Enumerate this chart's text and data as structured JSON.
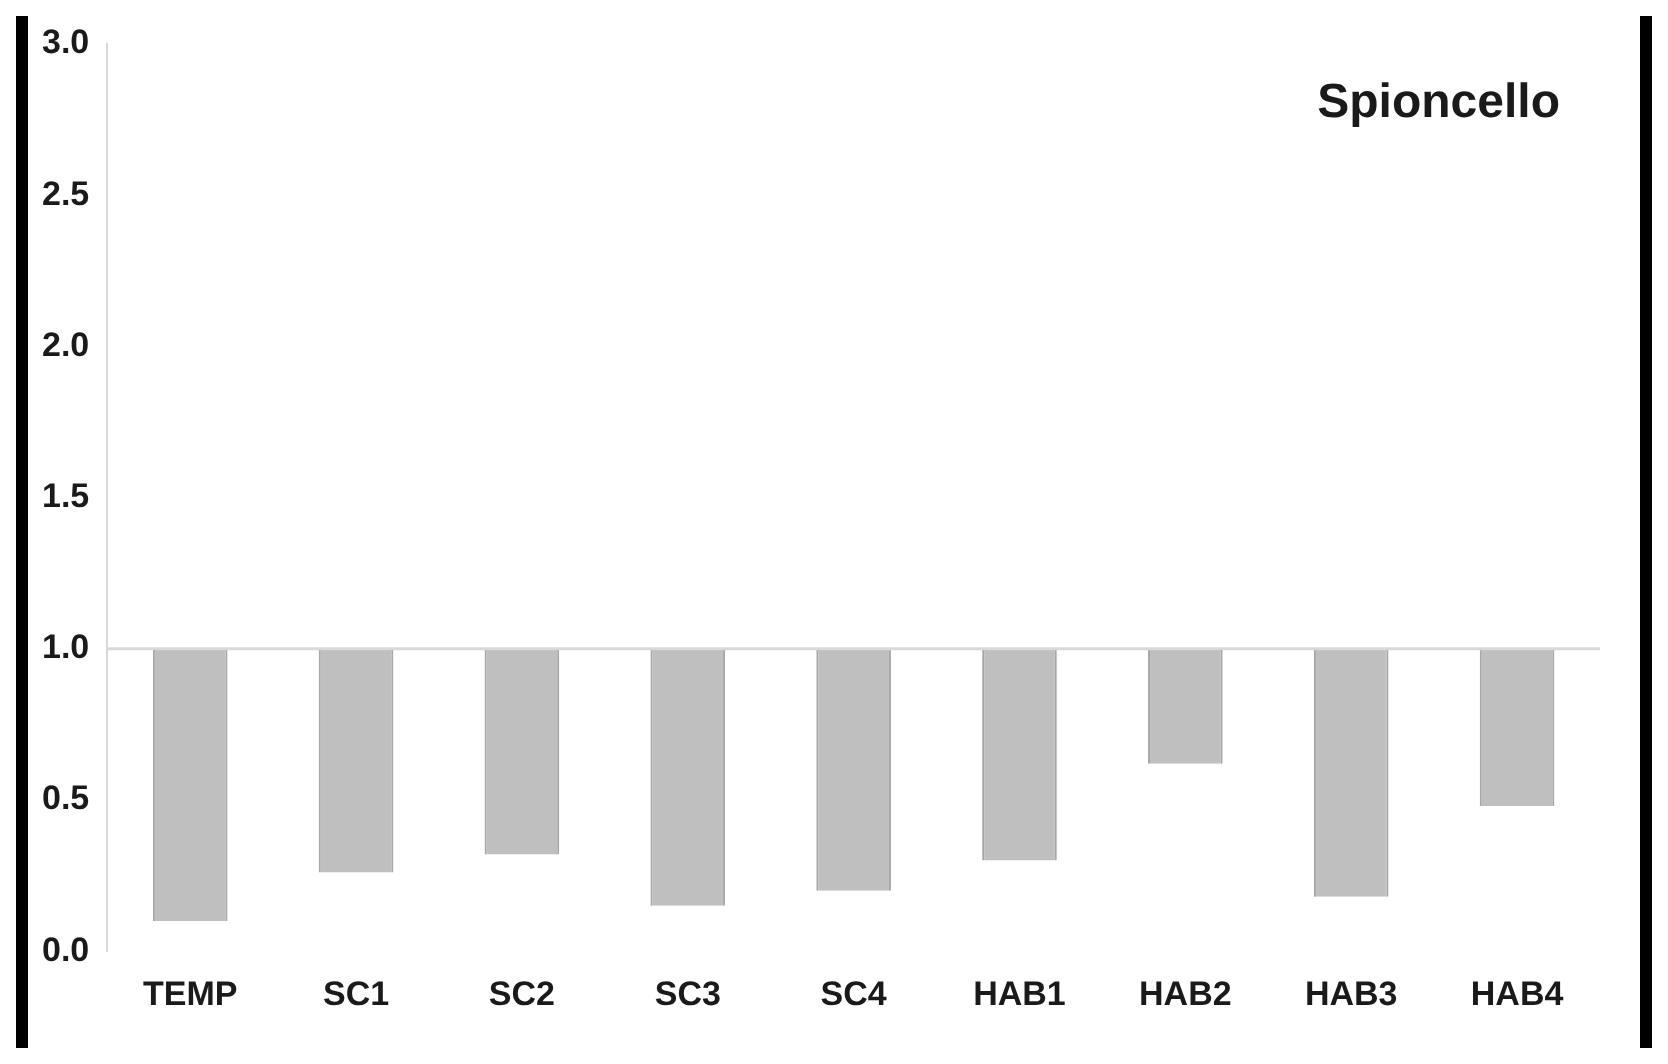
{
  "chart_data": {
    "type": "bar",
    "title": "Spioncello",
    "categories": [
      "TEMP",
      "SC1",
      "SC2",
      "SC3",
      "SC4",
      "HAB1",
      "HAB2",
      "HAB3",
      "HAB4"
    ],
    "base": [
      1,
      1,
      1,
      1,
      1,
      1,
      1,
      1,
      1
    ],
    "values": [
      -0.9,
      -0.74,
      -0.68,
      -0.85,
      -0.8,
      -0.7,
      -0.38,
      -0.82,
      -0.52
    ],
    "color": "#bfbfbf",
    "ylim": [
      0,
      3
    ],
    "yticks": [
      {
        "value": 0,
        "label": "0.0"
      },
      {
        "value": 0.5,
        "label": "0.5"
      },
      {
        "value": 1,
        "label": "1.0"
      },
      {
        "value": 1.5,
        "label": "1.5"
      },
      {
        "value": 2,
        "label": "2.0"
      },
      {
        "value": 2.5,
        "label": "2.5"
      },
      {
        "value": 3,
        "label": "3.0"
      }
    ],
    "ref_lines": [
      {
        "axis": "y",
        "value": 1,
        "color": "#d9d9d9"
      }
    ],
    "grid": false,
    "legend": false
  }
}
